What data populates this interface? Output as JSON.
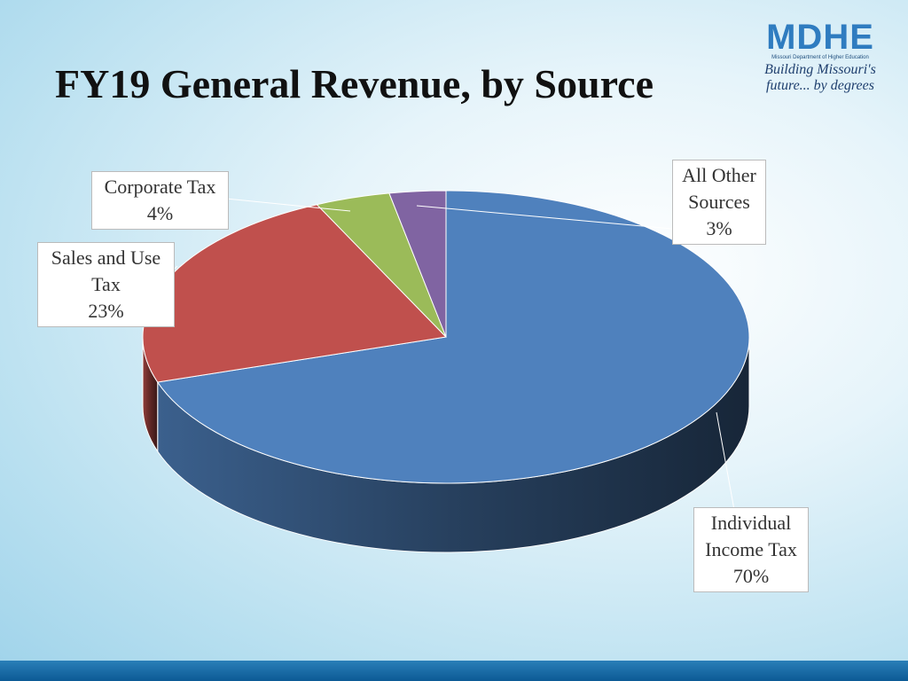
{
  "logo": {
    "name": "MDHE",
    "org": "Missouri Department of Higher Education",
    "tagline": "Building Missouri's future... by degrees"
  },
  "chart_data": {
    "type": "pie3d",
    "title": "FY19 General Revenue, by Source",
    "categories": [
      "Individual Income Tax",
      "Sales and Use Tax",
      "Corporate Tax",
      "All Other Sources"
    ],
    "values": [
      70,
      23,
      4,
      3
    ],
    "value_labels": [
      "70%",
      "23%",
      "4%",
      "3%"
    ],
    "colors": [
      "#4f81bd",
      "#c0504d",
      "#9bbb59",
      "#8064a2"
    ]
  }
}
